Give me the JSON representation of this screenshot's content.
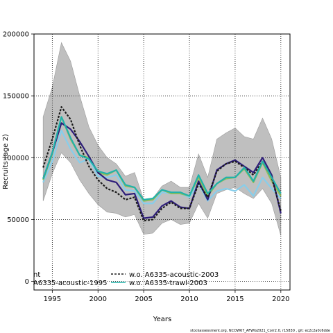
{
  "chart_data": {
    "type": "line",
    "title": "",
    "xlabel": "Years",
    "ylabel": "Recruits (age 2)",
    "xlim": [
      1993,
      2021
    ],
    "ylim": [
      -7000,
      200000
    ],
    "x_ticks": [
      1995,
      2000,
      2005,
      2010,
      2015,
      2020
    ],
    "y_ticks": [
      0,
      50000,
      100000,
      150000,
      200000
    ],
    "x_tick_labels": [
      "1995",
      "2000",
      "2005",
      "2010",
      "2015",
      "2020"
    ],
    "y_tick_labels": [
      "0",
      "50000",
      "100000",
      "150000",
      "200000"
    ],
    "grid": "dotted",
    "x": [
      1994,
      1995,
      1996,
      1997,
      1998,
      1999,
      2000,
      2001,
      2002,
      2003,
      2004,
      2005,
      2006,
      2007,
      2008,
      2009,
      2010,
      2011,
      2012,
      2013,
      2014,
      2015,
      2016,
      2017,
      2018,
      2019,
      2020
    ],
    "band": {
      "upper": [
        133000,
        157000,
        193000,
        178000,
        150000,
        125000,
        110000,
        100000,
        95000,
        85000,
        88000,
        66000,
        67000,
        77000,
        81000,
        76000,
        76000,
        103000,
        84000,
        115000,
        120000,
        124000,
        117000,
        115000,
        132000,
        115000,
        84000
      ],
      "lower": [
        65000,
        87000,
        104000,
        96000,
        82000,
        71000,
        62000,
        56000,
        55000,
        52000,
        54000,
        38000,
        39000,
        47000,
        50000,
        46000,
        47000,
        63000,
        51000,
        71000,
        74000,
        76000,
        71000,
        67000,
        75000,
        63000,
        37000
      ],
      "color": "#bfbfbf"
    },
    "series": [
      {
        "name": "",
        "color": "#87ceeb",
        "dash": "solid",
        "values": [
          80000,
          97000,
          122000,
          107000,
          96000,
          99000,
          85000,
          84000,
          86000,
          74000,
          73000,
          63000,
          63000,
          72000,
          71000,
          71000,
          68000,
          79000,
          65000,
          73000,
          75000,
          73000,
          78000,
          69000,
          84000,
          75000,
          67000
        ]
      },
      {
        "name": "",
        "color": "#8fbc5a",
        "dash": "solid",
        "values": [
          82000,
          103000,
          133000,
          115000,
          102000,
          100000,
          88000,
          86000,
          90000,
          77000,
          76000,
          65000,
          66000,
          74000,
          71000,
          71000,
          69000,
          84000,
          69000,
          79000,
          83000,
          84000,
          91000,
          80000,
          96000,
          81000,
          69000
        ]
      },
      {
        "name": "",
        "color": "#2e1e7a",
        "dash": "solid",
        "values": [
          83000,
          104000,
          128000,
          123000,
          113000,
          101000,
          88000,
          82000,
          80000,
          70000,
          71000,
          51000,
          52000,
          61000,
          65000,
          60000,
          59000,
          81000,
          66000,
          90000,
          95000,
          98000,
          93000,
          88000,
          100000,
          86000,
          55000
        ]
      },
      {
        "name": "w.o. A6335-acoustic-2003",
        "color": "#1a1a1a",
        "dash": "3,2",
        "values": [
          92000,
          115000,
          141000,
          131000,
          110000,
          93000,
          82000,
          75000,
          72000,
          66000,
          68000,
          49000,
          50000,
          59000,
          64000,
          59000,
          59000,
          79000,
          68000,
          89000,
          95000,
          97000,
          92000,
          86000,
          97000,
          84000,
          57000
        ]
      },
      {
        "name": "w.o. A6335-trawl-2003",
        "color": "#20b2aa",
        "dash": "solid",
        "values": [
          83000,
          104000,
          133000,
          116000,
          102000,
          99000,
          89000,
          87000,
          90000,
          78000,
          76000,
          66000,
          67000,
          74000,
          72000,
          72000,
          69000,
          86000,
          71000,
          79000,
          84000,
          84000,
          92000,
          81000,
          97000,
          84000,
          71000
        ]
      }
    ],
    "legend": {
      "entries": [
        "nt",
        "A6335-acoustic-1995",
        "w.o. A6335-acoustic-2003",
        "w.o. A6335-trawl-2003"
      ],
      "placement": "bottom-left"
    },
    "credit": "stockassessment.org, NCOW67_AFWG2021_Corr2.0, r15830 , git: ec2c2a0c6dde"
  }
}
